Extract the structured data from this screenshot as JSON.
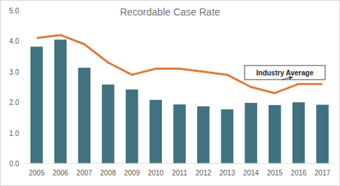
{
  "chart_data": {
    "type": "bar",
    "title": "Recordable Case Rate",
    "categories": [
      "2005",
      "2006",
      "2007",
      "2008",
      "2009",
      "2010",
      "2011",
      "2012",
      "2013",
      "2014",
      "2015",
      "2016",
      "2017"
    ],
    "series": [
      {
        "type": "bar",
        "color": "#41727f",
        "values": [
          3.82,
          4.05,
          3.13,
          2.58,
          2.42,
          2.08,
          1.93,
          1.87,
          1.77,
          1.98,
          1.91,
          2.0,
          1.92
        ]
      },
      {
        "name": "Industry Average",
        "type": "line",
        "color": "#e07b39",
        "values": [
          4.1,
          4.2,
          3.9,
          3.3,
          2.9,
          3.1,
          3.1,
          3.0,
          2.9,
          2.5,
          2.3,
          2.6,
          2.6
        ]
      }
    ],
    "ylim": [
      0,
      5
    ],
    "yticks": [
      {
        "value": 0,
        "label": "0.0"
      },
      {
        "value": 1,
        "label": "1.0"
      },
      {
        "value": 2,
        "label": "2.0"
      },
      {
        "value": 3,
        "label": "3.0"
      },
      {
        "value": 4,
        "label": "4.0"
      },
      {
        "value": 5,
        "label": "5.0"
      }
    ],
    "grid": false
  }
}
